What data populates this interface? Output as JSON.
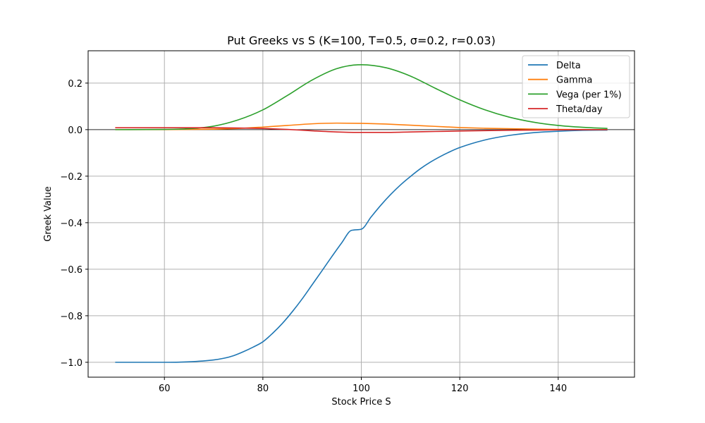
{
  "chart_data": {
    "type": "line",
    "title": "Put Greeks vs S (K=100, T=0.5, σ=0.2, r=0.03)",
    "xlabel": "Stock Price S",
    "ylabel": "Greek Value",
    "xlim": [
      44.5,
      155.5
    ],
    "ylim": [
      -1.064,
      0.339
    ],
    "xticks": [
      60,
      80,
      100,
      120,
      140
    ],
    "xtick_labels": [
      "60",
      "80",
      "100",
      "120",
      "140"
    ],
    "yticks": [
      -1.0,
      -0.8,
      -0.6,
      -0.4,
      -0.2,
      0.0,
      0.2
    ],
    "ytick_labels": [
      "−1.0",
      "−0.8",
      "−0.6",
      "−0.4",
      "−0.2",
      "0.0",
      "0.2"
    ],
    "grid": true,
    "zero_line": true,
    "legend_position": "top-right",
    "series": [
      {
        "name": "Delta",
        "color": "#1f77b4",
        "x": [
          50,
          55,
          60,
          65,
          70,
          72,
          74,
          76,
          78,
          80,
          82,
          84,
          86,
          88,
          90,
          92,
          94,
          96,
          98,
          100,
          102,
          104,
          106,
          108,
          110,
          112,
          114,
          116,
          118,
          120,
          125,
          130,
          135,
          140,
          145,
          150
        ],
        "y": [
          -1.0,
          -1.0,
          -1.0,
          -0.998,
          -0.99,
          -0.983,
          -0.972,
          -0.955,
          -0.935,
          -0.912,
          -0.875,
          -0.832,
          -0.782,
          -0.727,
          -0.667,
          -0.607,
          -0.546,
          -0.487,
          -0.433,
          -0.428,
          -0.375,
          -0.324,
          -0.278,
          -0.237,
          -0.201,
          -0.168,
          -0.14,
          -0.116,
          -0.095,
          -0.077,
          -0.045,
          -0.025,
          -0.013,
          -0.007,
          -0.003,
          -0.002
        ]
      },
      {
        "name": "Gamma",
        "color": "#ff7f0e",
        "x": [
          50,
          60,
          70,
          75,
          80,
          85,
          90,
          95,
          100,
          105,
          110,
          115,
          120,
          125,
          130,
          140,
          150
        ],
        "y": [
          0.0,
          0.0,
          0.002,
          0.005,
          0.011,
          0.018,
          0.025,
          0.028,
          0.027,
          0.024,
          0.019,
          0.014,
          0.009,
          0.006,
          0.004,
          0.001,
          0.0
        ]
      },
      {
        "name": "Vega (per 1%)",
        "color": "#2ca02c",
        "x": [
          50,
          60,
          65,
          70,
          75,
          80,
          85,
          90,
          95,
          100,
          105,
          110,
          115,
          120,
          125,
          130,
          135,
          140,
          145,
          150
        ],
        "y": [
          0.0,
          0.001,
          0.004,
          0.015,
          0.042,
          0.085,
          0.147,
          0.213,
          0.262,
          0.279,
          0.266,
          0.23,
          0.178,
          0.128,
          0.086,
          0.054,
          0.032,
          0.018,
          0.01,
          0.005
        ]
      },
      {
        "name": "Theta/day",
        "color": "#d62728",
        "x": [
          50,
          60,
          70,
          75,
          80,
          85,
          90,
          95,
          100,
          105,
          110,
          115,
          120,
          130,
          140,
          150
        ],
        "y": [
          0.008,
          0.008,
          0.008,
          0.007,
          0.005,
          0.001,
          -0.005,
          -0.01,
          -0.012,
          -0.012,
          -0.01,
          -0.008,
          -0.006,
          -0.003,
          -0.001,
          0.0
        ]
      }
    ]
  }
}
